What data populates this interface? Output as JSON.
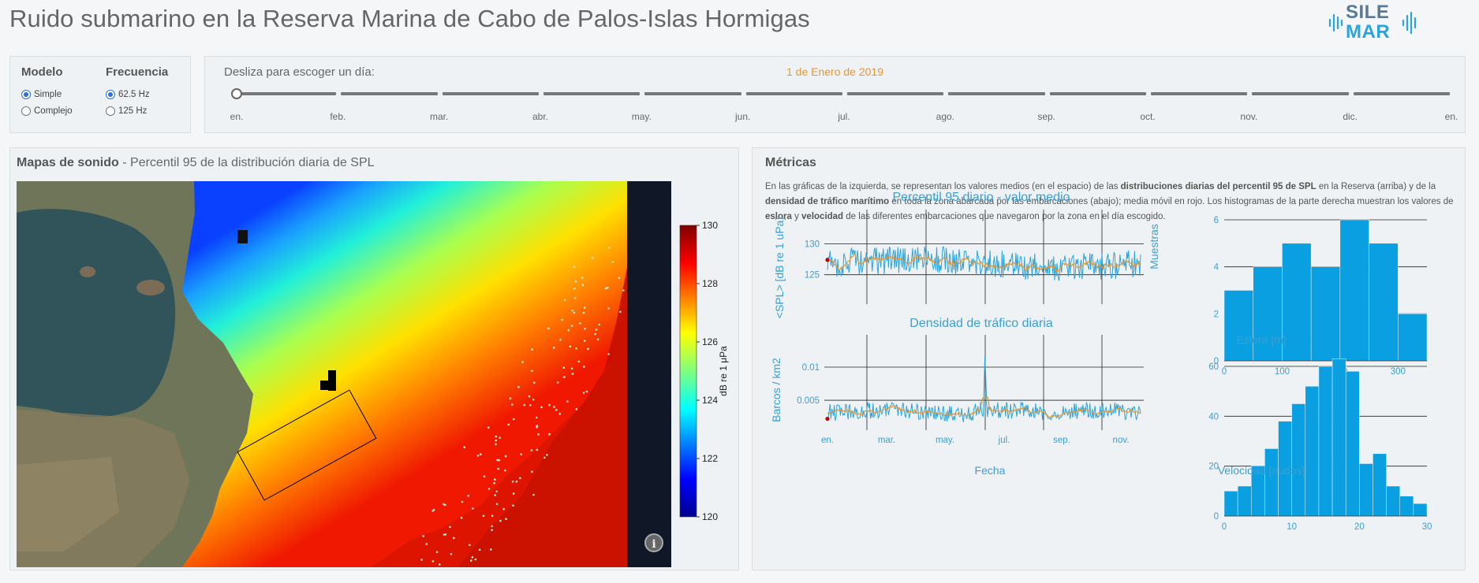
{
  "header": {
    "title": "Ruido submarino en la Reserva Marina de Cabo de Palos-Islas Hormigas",
    "logo_line1": "SILE",
    "logo_line2": "MAR",
    "brand_color": "#2aa4dd"
  },
  "controls": {
    "model_heading": "Modelo",
    "model_options": [
      "Simple",
      "Complejo"
    ],
    "model_selected": "Simple",
    "freq_heading": "Frecuencia",
    "freq_options": [
      "62.5 Hz",
      "125 Hz"
    ],
    "freq_selected": "62.5 Hz"
  },
  "slider": {
    "label": "Desliza para escoger un día:",
    "selected_date": "1 de Enero de 2019",
    "value": 0,
    "months": [
      "en.",
      "feb.",
      "mar.",
      "abr.",
      "may.",
      "jun.",
      "jul.",
      "ago.",
      "sep.",
      "oct.",
      "nov.",
      "dic.",
      "en."
    ]
  },
  "map": {
    "title_bold": "Mapas de sonido",
    "title_rest": " - Percentil 95 de la distribución diaria de SPL",
    "colorbar": {
      "label": "dB re 1 μPa",
      "ticks": [
        "120",
        "122",
        "124",
        "126",
        "128",
        "130"
      ],
      "min": 120,
      "max": 130
    },
    "info_icon": "info-icon"
  },
  "metrics": {
    "title": "Métricas",
    "desc_1": "En las gráficas de la izquierda, se representan los valores medios (en el espacio) de las ",
    "desc_b1": "distribuciones diarias del percentil 95 de SPL",
    "desc_2": " en la Reserva (arriba) y de la ",
    "desc_b2": "densidad de tráfico marítimo",
    "desc_3": " en toda la zona abarcada por las embarcaciones (abajo); media móvil en rojo. Los histogramas de la parte derecha muestran los valores de ",
    "desc_b3": "eslora",
    "desc_4": " y ",
    "desc_b4": "velocidad",
    "desc_5": " de las diferentes embarcaciones que navegaron por la zona en el día escogido."
  },
  "chart_data": [
    {
      "type": "line",
      "title": "Percentil 95 diario - valor medio",
      "ylabel": "<SPL> [dB re 1 uPa]",
      "xlabel": "",
      "yticks": [
        125,
        130
      ],
      "ylim": [
        121,
        133
      ],
      "series": [
        {
          "color": "#2aa4dd"
        },
        {
          "color": "#e8952c"
        }
      ],
      "marker_value": 127.4
    },
    {
      "type": "line",
      "title": "Densidad de tráfico diaria",
      "ylabel": "Barcos / km2",
      "xlabel": "Fecha",
      "yticks": [
        0.005,
        0.01
      ],
      "ytick_labels": [
        "0.005",
        "0.01"
      ],
      "ylim": [
        0.0012,
        0.0125
      ],
      "xticks": [
        "en.",
        "mar.",
        "may.",
        "jul.",
        "sep.",
        "nov."
      ],
      "series": [
        {
          "color": "#2aa4dd"
        },
        {
          "color": "#e8952c"
        }
      ],
      "peak_value": 0.0116,
      "marker_value": 0.0022
    },
    {
      "type": "bar",
      "title": "",
      "xlabel": "Eslora [m]",
      "ylabel": "Muestras",
      "xlim": [
        0,
        350
      ],
      "xticks": [
        0,
        100,
        200,
        300
      ],
      "ylim": [
        0,
        6
      ],
      "yticks": [
        0,
        2,
        4,
        6
      ],
      "bin_edges": [
        0,
        50,
        100,
        150,
        200,
        250,
        300,
        350
      ],
      "values": [
        3,
        4,
        5,
        4,
        6,
        5,
        2
      ],
      "color": "#0a9fe0"
    },
    {
      "type": "bar",
      "title": "",
      "xlabel": "Velocidad [nudos]",
      "ylabel": "",
      "xlim": [
        0,
        30
      ],
      "xticks": [
        0,
        10,
        20,
        30
      ],
      "ylim": [
        0,
        66
      ],
      "yticks": [
        0,
        20,
        40,
        60
      ],
      "bin_edges": [
        0,
        2,
        4,
        6,
        8,
        10,
        12,
        14,
        16,
        18,
        20,
        22,
        24,
        26,
        28,
        30
      ],
      "values": [
        10,
        12,
        20,
        27,
        38,
        45,
        52,
        60,
        63,
        58,
        21,
        25,
        12,
        8,
        5
      ],
      "color": "#0a9fe0"
    }
  ]
}
